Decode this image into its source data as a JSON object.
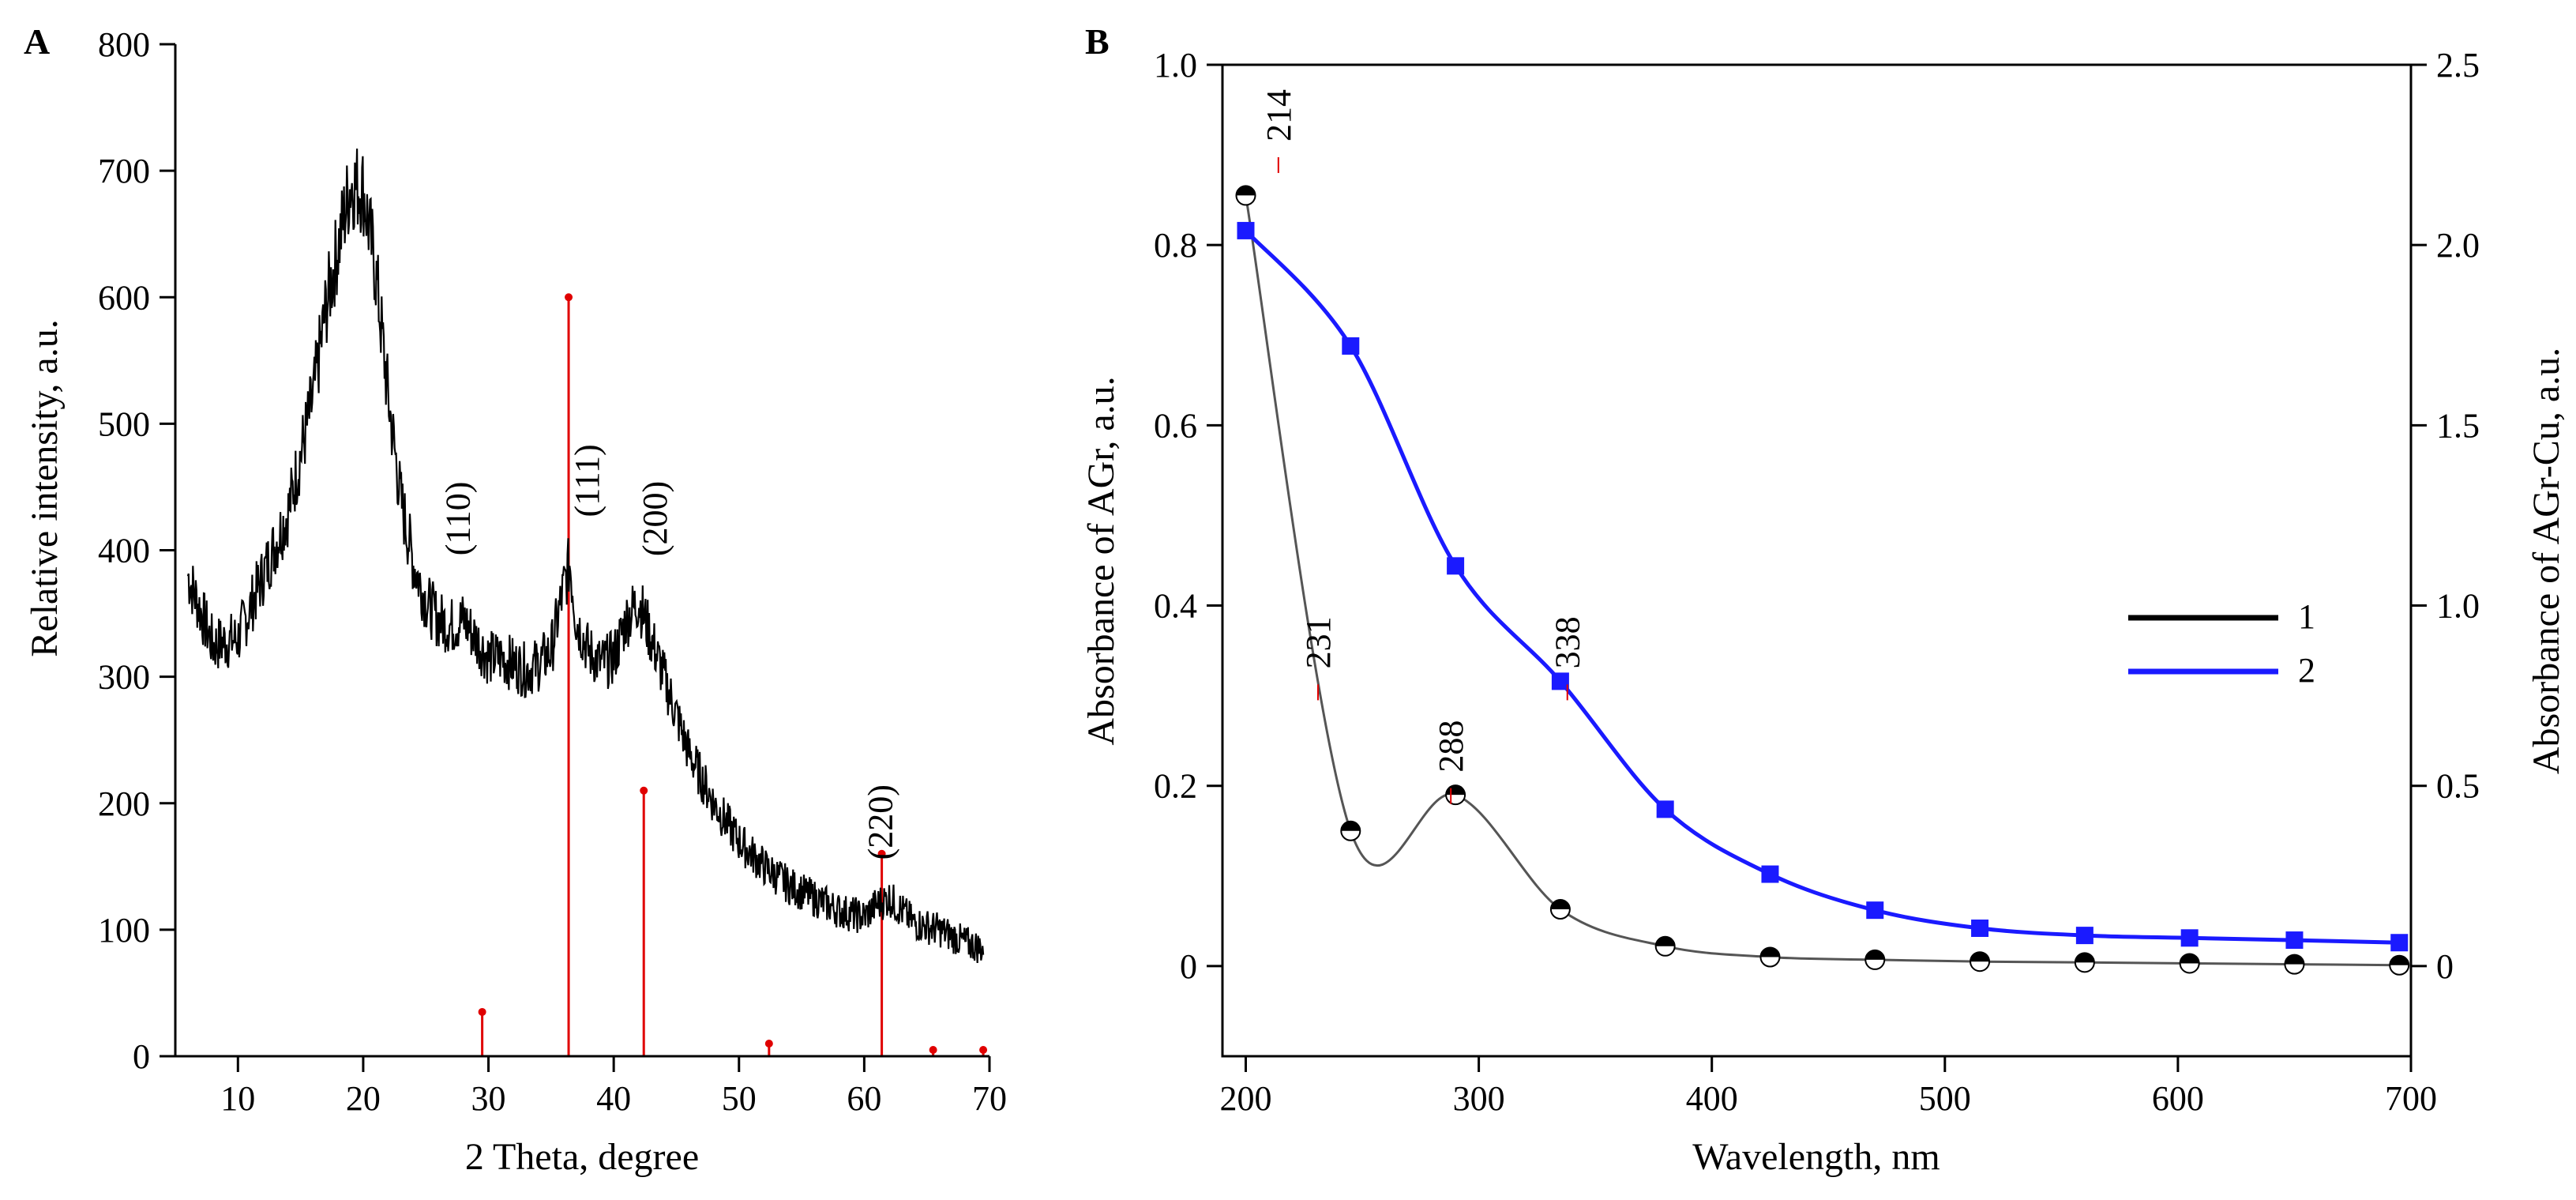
{
  "chart_data": [
    {
      "panel": "A",
      "type": "line",
      "xlabel": "2 Theta, degree",
      "ylabel": "Relative intensity, a.u.",
      "xlim": [
        5,
        70
      ],
      "ylim": [
        0,
        800
      ],
      "xticks": [
        10,
        20,
        30,
        40,
        50,
        60,
        70
      ],
      "yticks": [
        0,
        100,
        200,
        300,
        400,
        500,
        600,
        700,
        800
      ],
      "pattern": {
        "x": [
          6,
          8,
          10,
          12,
          14,
          16,
          17,
          18,
          19,
          20,
          21,
          22,
          23,
          24,
          25,
          26,
          27,
          28,
          29,
          30,
          31,
          32,
          33,
          34,
          35,
          36,
          36.5,
          37,
          38,
          39,
          40,
          41,
          42,
          43,
          44,
          45,
          46,
          48,
          50,
          52,
          54,
          56,
          58,
          60,
          61,
          62,
          63,
          64,
          66,
          68,
          69.5
        ],
        "y": [
          380,
          325,
          330,
          380,
          430,
          520,
          590,
          640,
          690,
          685,
          620,
          520,
          440,
          390,
          360,
          345,
          340,
          345,
          330,
          315,
          315,
          310,
          305,
          310,
          320,
          370,
          390,
          345,
          320,
          310,
          315,
          345,
          360,
          330,
          300,
          270,
          240,
          200,
          170,
          150,
          135,
          125,
          115,
          110,
          120,
          125,
          115,
          105,
          100,
          90,
          85
        ],
        "color": "#000000"
      },
      "reference_sticks": {
        "x": [
          29.5,
          36.4,
          42.4,
          52.4,
          61.4,
          65.5,
          69.5
        ],
        "y": [
          35,
          600,
          210,
          10,
          160,
          5,
          5
        ],
        "color": "#e00000"
      },
      "annotations": [
        {
          "text": "(110)",
          "x": 28.5,
          "y": 425
        },
        {
          "text": "(111)",
          "x": 38.8,
          "y": 455
        },
        {
          "text": "(200)",
          "x": 44.2,
          "y": 425
        },
        {
          "text": "(220)",
          "x": 62.2,
          "y": 185
        }
      ]
    },
    {
      "panel": "B",
      "type": "line",
      "xlabel": "Wavelength, nm",
      "ylabel": "Absorbance of AGr, a.u.",
      "y2label": "Absorbance of AGr-Cu, a.u.",
      "xlim": [
        190,
        700
      ],
      "ylim": [
        -0.1,
        1.0
      ],
      "y2lim": [
        -0.25,
        2.5
      ],
      "xticks": [
        200,
        300,
        400,
        500,
        600,
        700
      ],
      "yticks": [
        0,
        0.2,
        0.4,
        0.6,
        0.8,
        1.0
      ],
      "yticklabels": [
        "0",
        "0.2",
        "0.4",
        "0.6",
        "0.8",
        "1.0"
      ],
      "y2ticks": [
        0,
        0.5,
        1.0,
        1.5,
        2.0,
        2.5
      ],
      "y2ticklabels": [
        "0",
        "0.5",
        "1.0",
        "1.5",
        "2.0",
        "2.5"
      ],
      "series": [
        {
          "name": "1",
          "axis": "left",
          "color": "#555555",
          "x": [
            200,
            245,
            290,
            335,
            380,
            425,
            470,
            515,
            560,
            605,
            650,
            695
          ],
          "y": [
            0.855,
            0.15,
            0.19,
            0.063,
            0.022,
            0.01,
            0.007,
            0.005,
            0.004,
            0.003,
            0.002,
            0.001
          ]
        },
        {
          "name": "2",
          "axis": "right",
          "color": "#1a1aff",
          "x": [
            200,
            245,
            290,
            335,
            380,
            425,
            470,
            515,
            560,
            605,
            650,
            695
          ],
          "y": [
            2.04,
            1.72,
            1.11,
            0.79,
            0.435,
            0.255,
            0.155,
            0.105,
            0.085,
            0.078,
            0.072,
            0.065
          ]
        }
      ],
      "annotations": [
        {
          "text": "214",
          "x": 214,
          "y": 0.915
        },
        {
          "text": "231",
          "x": 231,
          "y": 0.33
        },
        {
          "text": "288",
          "x": 288,
          "y": 0.215
        },
        {
          "text": "338",
          "x": 338,
          "y": 0.33
        }
      ],
      "legend_position": "right"
    }
  ]
}
